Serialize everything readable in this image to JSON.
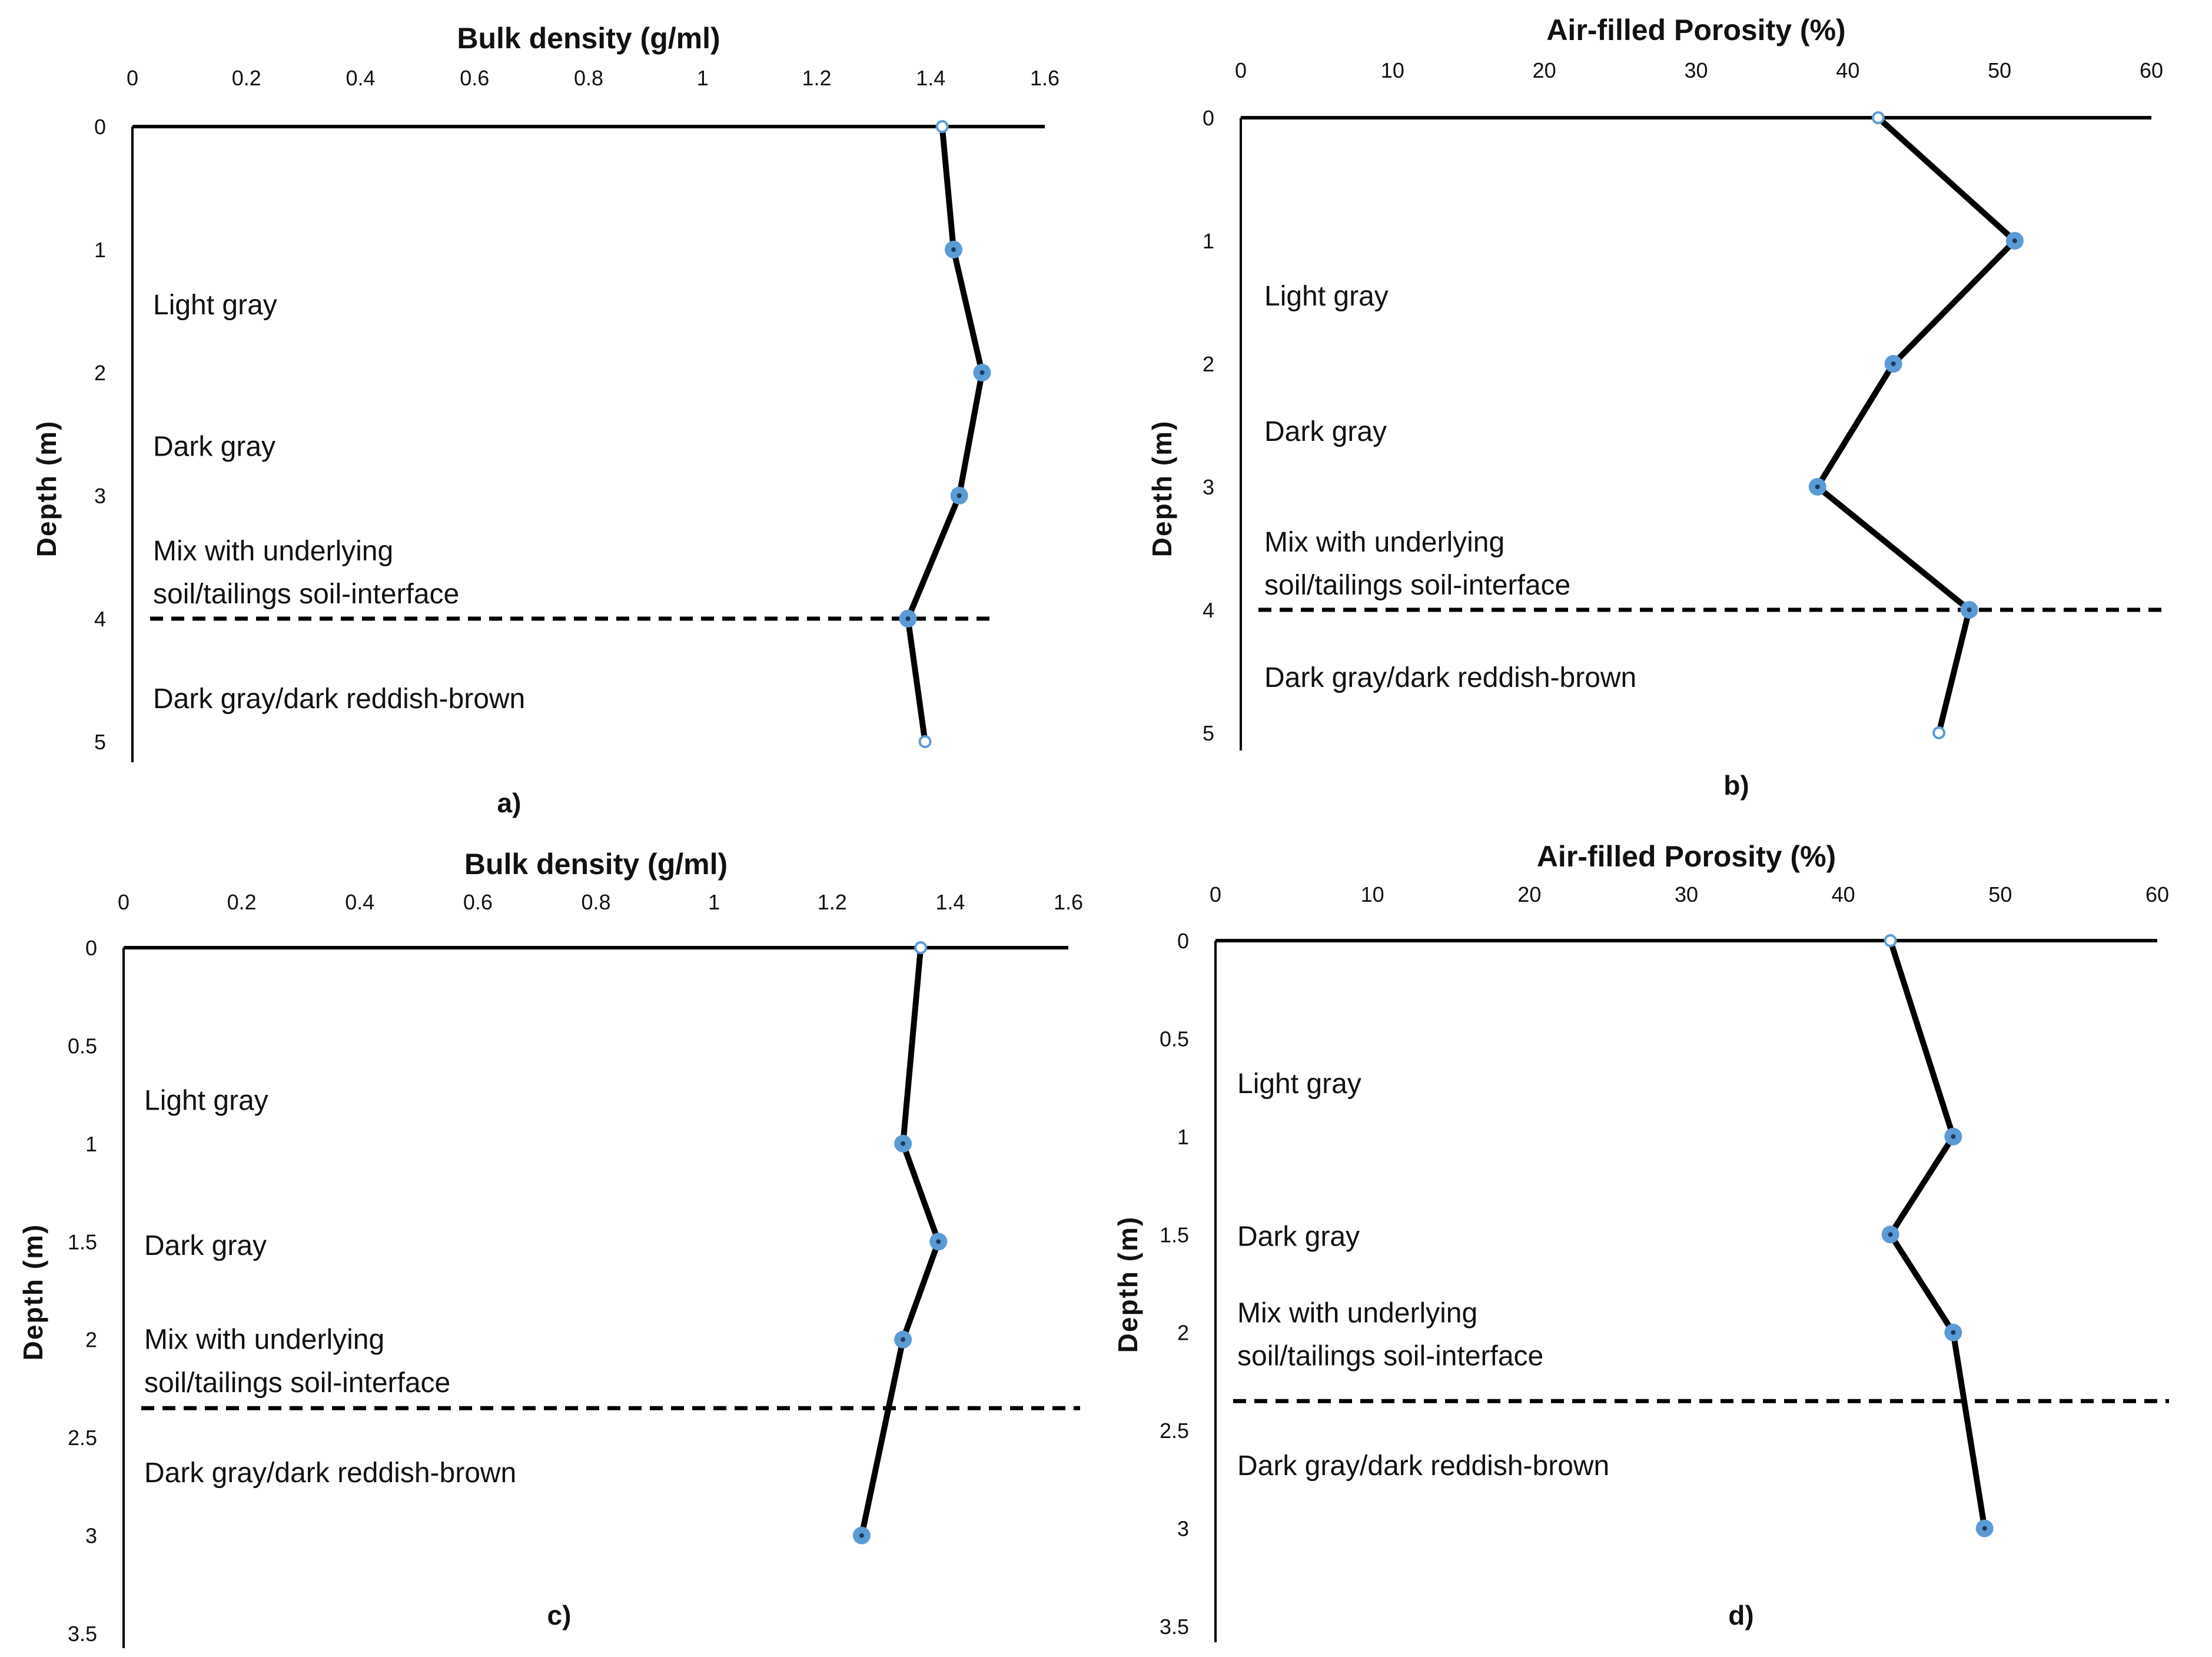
{
  "colors": {
    "line": "#000000",
    "marker": "#5b9bd5",
    "marker_center": "#1f3a5f"
  },
  "chart_data": [
    {
      "type": "line",
      "panel_label": "a)",
      "title": "Bulk density (g/ml)",
      "xlabel": "Bulk density (g/ml)",
      "ylabel": "Depth (m)",
      "xlim": [
        0,
        1.6
      ],
      "ylim": [
        0,
        5
      ],
      "x_ticks": [
        "0",
        "0.2",
        "0.4",
        "0.6",
        "0.8",
        "1",
        "1.2",
        "1.4",
        "1.6"
      ],
      "y_ticks": [
        "0",
        "1",
        "2",
        "3",
        "4",
        "5"
      ],
      "x": [
        1.42,
        1.44,
        1.49,
        1.45,
        1.36,
        1.39
      ],
      "y": [
        0,
        1,
        2,
        3,
        4,
        5
      ],
      "interface_depth": 4,
      "annotations": [
        {
          "text": "Light gray",
          "depth": 1.45
        },
        {
          "text": "Dark gray",
          "depth": 2.6
        },
        {
          "text": "Mix with underlying",
          "depth": 3.45
        },
        {
          "text": "soil/tailings soil-interface",
          "depth": 3.8
        },
        {
          "text": "Dark gray/dark reddish-brown",
          "depth": 4.65
        }
      ]
    },
    {
      "type": "line",
      "panel_label": "b)",
      "title": "Air-filled Porosity (%)",
      "xlabel": "Air-filled Porosity (%)",
      "ylabel": "Depth (m)",
      "xlim": [
        0,
        60
      ],
      "ylim": [
        0,
        5
      ],
      "x_ticks": [
        "0",
        "10",
        "20",
        "30",
        "40",
        "50",
        "60"
      ],
      "y_ticks": [
        "0",
        "1",
        "2",
        "3",
        "4",
        "5"
      ],
      "x": [
        42,
        51,
        43,
        38,
        48,
        46
      ],
      "y": [
        0,
        1,
        2,
        3,
        4,
        5
      ],
      "interface_depth": 4,
      "annotations": [
        {
          "text": "Light gray",
          "depth": 1.45
        },
        {
          "text": "Dark gray",
          "depth": 2.55
        },
        {
          "text": "Mix with underlying",
          "depth": 3.45
        },
        {
          "text": "soil/tailings soil-interface",
          "depth": 3.8
        },
        {
          "text": "Dark gray/dark reddish-brown",
          "depth": 4.55
        }
      ]
    },
    {
      "type": "line",
      "panel_label": "c)",
      "title": "Bulk density (g/ml)",
      "xlabel": "Bulk density (g/ml)",
      "ylabel": "Depth (m)",
      "xlim": [
        0,
        1.6
      ],
      "ylim": [
        0,
        3.5
      ],
      "x_ticks": [
        "0",
        "0.2",
        "0.4",
        "0.6",
        "0.8",
        "1",
        "1.2",
        "1.4",
        "1.6"
      ],
      "y_ticks": [
        "0",
        "0.5",
        "1",
        "1.5",
        "2",
        "2.5",
        "3",
        "3.5"
      ],
      "x": [
        1.35,
        1.32,
        1.38,
        1.32,
        1.25
      ],
      "y": [
        0,
        1,
        1.5,
        2,
        3
      ],
      "interface_depth": 2.35,
      "annotations": [
        {
          "text": "Light gray",
          "depth": 0.78
        },
        {
          "text": "Dark gray",
          "depth": 1.52
        },
        {
          "text": "Mix with underlying",
          "depth": 2.0
        },
        {
          "text": "soil/tailings soil-interface",
          "depth": 2.22
        },
        {
          "text": "Dark gray/dark reddish-brown",
          "depth": 2.68
        }
      ]
    },
    {
      "type": "line",
      "panel_label": "d)",
      "title": "Air-filled Porosity (%)",
      "xlabel": "Air-filled Porosity (%)",
      "ylabel": "Depth (m)",
      "xlim": [
        0,
        60
      ],
      "ylim": [
        0,
        3.5
      ],
      "x_ticks": [
        "0",
        "10",
        "20",
        "30",
        "40",
        "50",
        "60"
      ],
      "y_ticks": [
        "0",
        "0.5",
        "1",
        "1.5",
        "2",
        "2.5",
        "3",
        "3.5"
      ],
      "x": [
        43,
        47,
        43,
        47,
        49
      ],
      "y": [
        0,
        1,
        1.5,
        2,
        3
      ],
      "interface_depth": 2.35,
      "annotations": [
        {
          "text": "Light gray",
          "depth": 0.73
        },
        {
          "text": "Dark gray",
          "depth": 1.51
        },
        {
          "text": "Mix with underlying",
          "depth": 1.9
        },
        {
          "text": "soil/tailings soil-interface",
          "depth": 2.12
        },
        {
          "text": "Dark gray/dark reddish-brown",
          "depth": 2.68
        }
      ]
    }
  ]
}
